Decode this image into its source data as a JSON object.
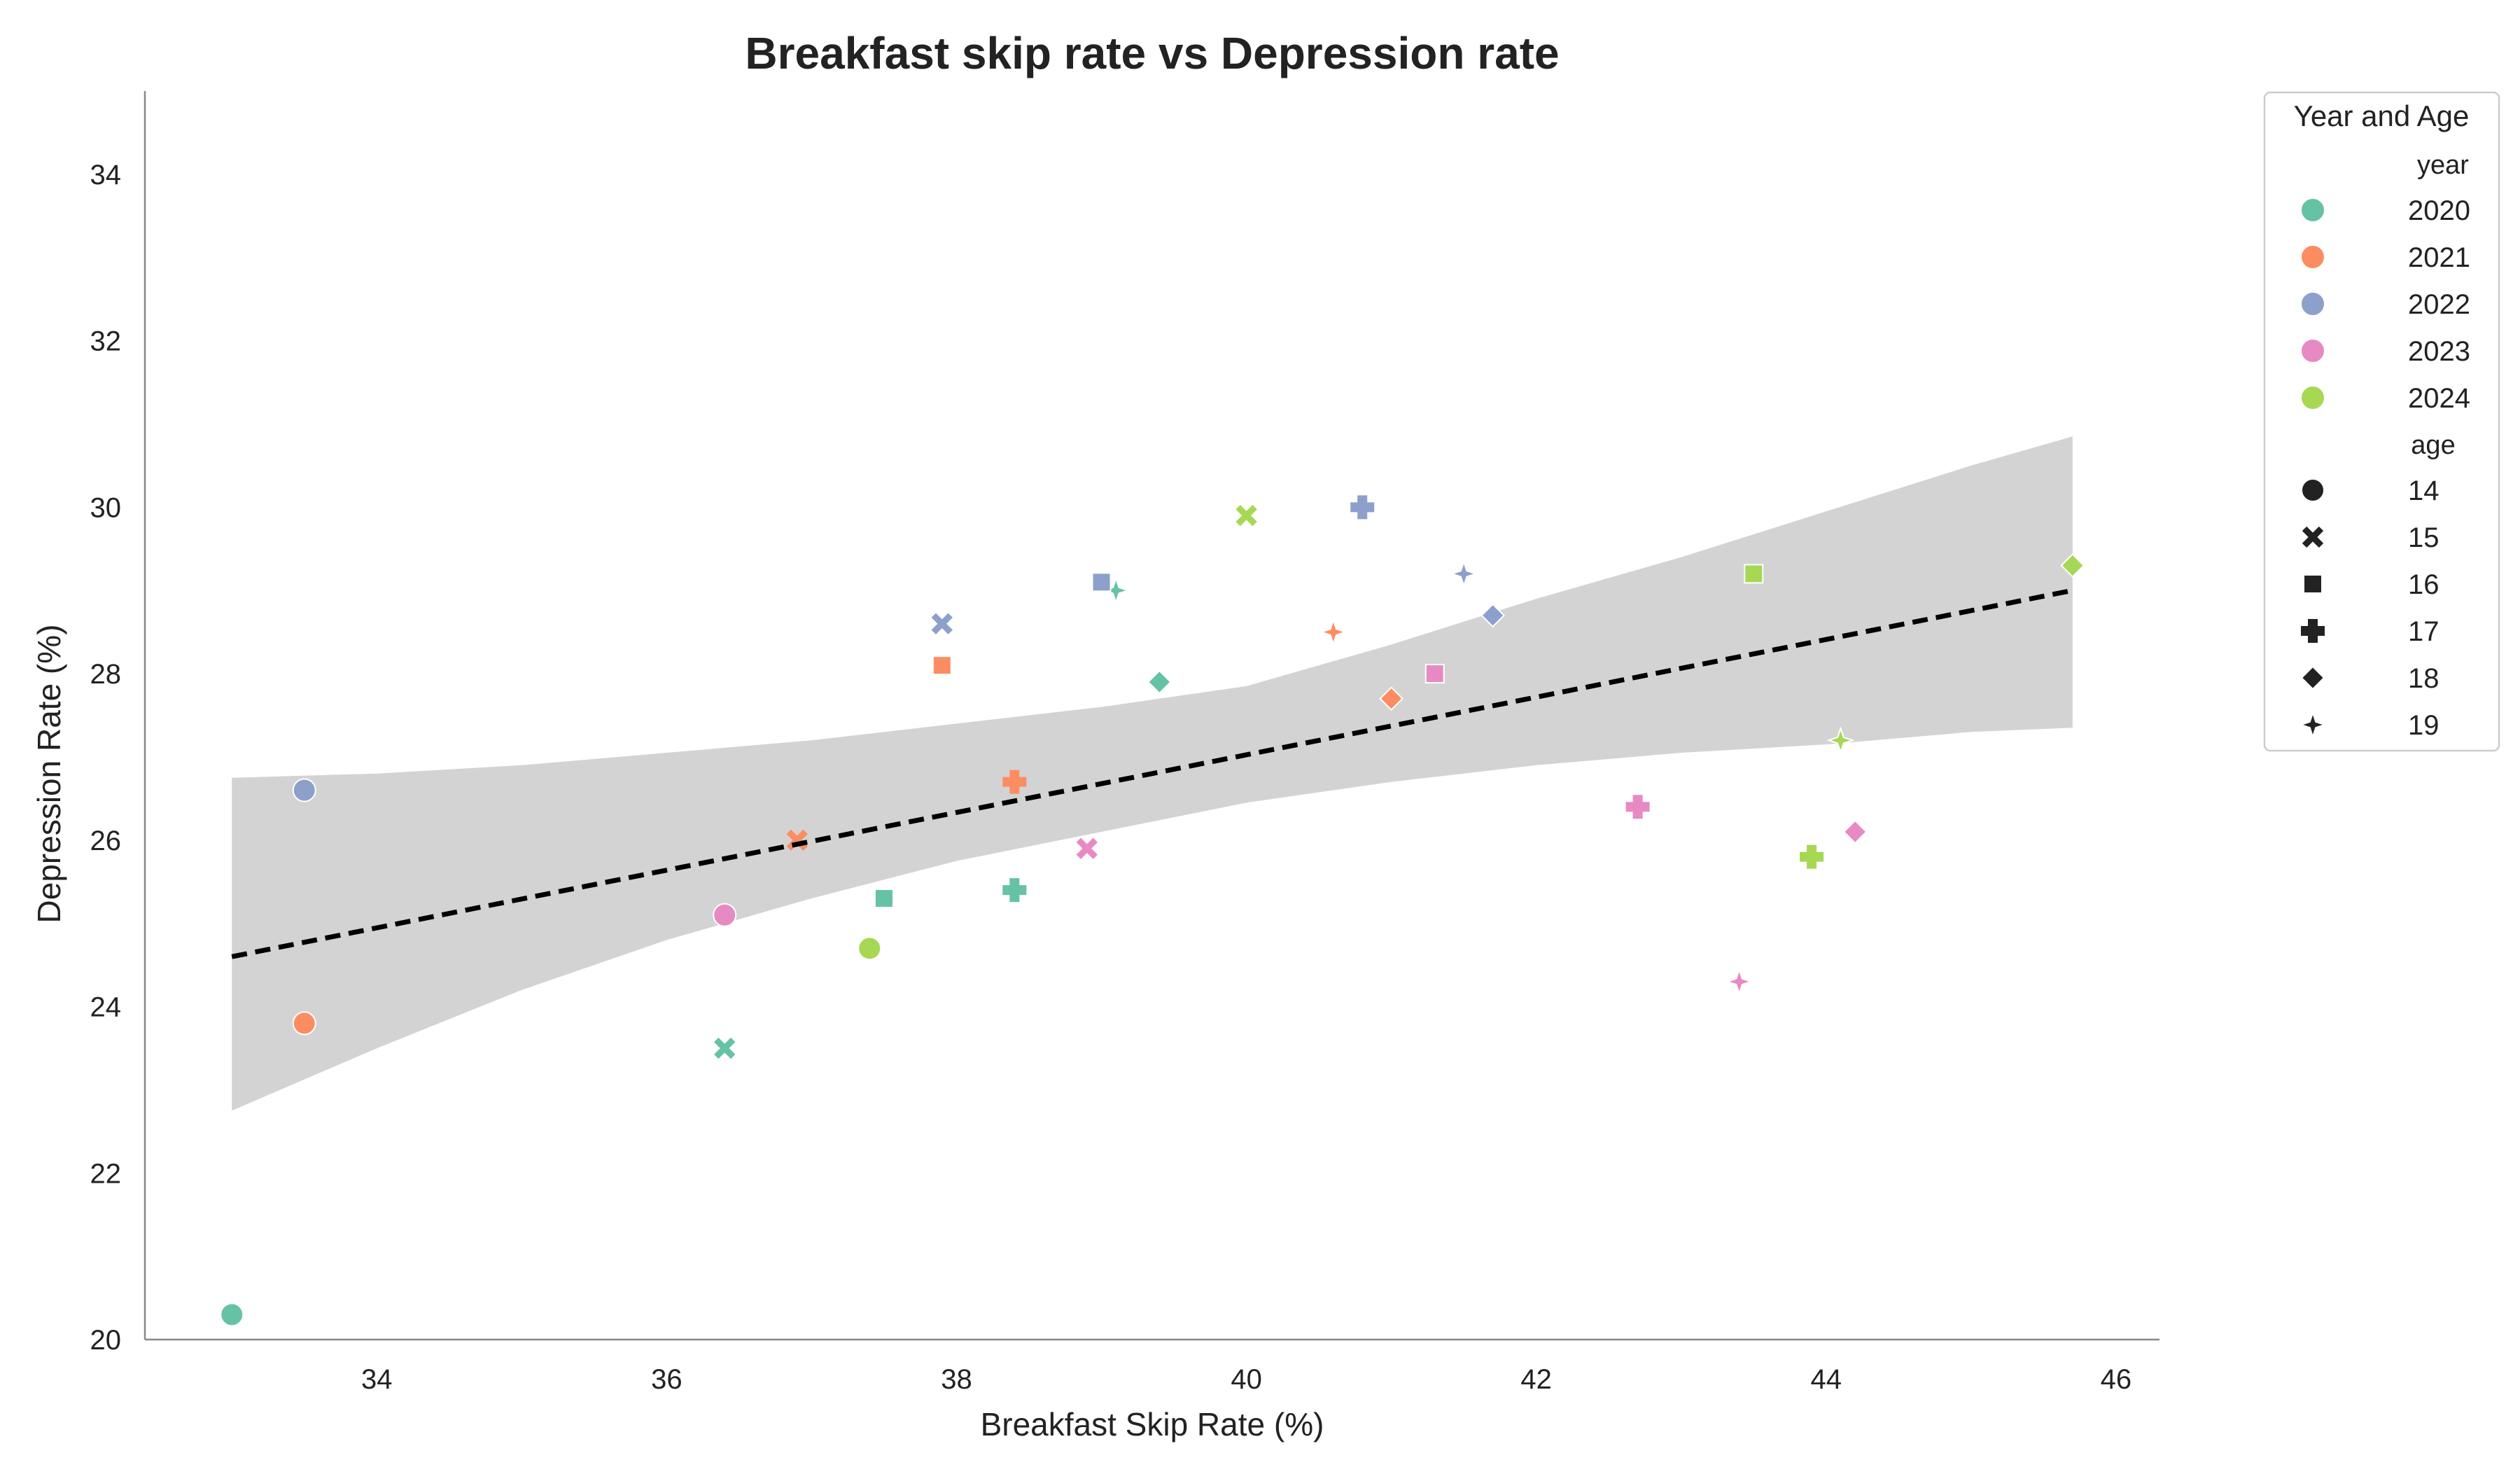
{
  "chart_data": {
    "type": "scatter",
    "title": "Breakfast skip rate vs Depression rate",
    "xlabel": "Breakfast Skip Rate (%)",
    "ylabel": "Depression Rate (%)",
    "xlim": [
      32.4,
      46.3
    ],
    "ylim": [
      20,
      35
    ],
    "xticks": [
      34,
      36,
      38,
      40,
      42,
      44,
      46
    ],
    "yticks": [
      20,
      22,
      24,
      26,
      28,
      30,
      32,
      34
    ],
    "grid": false,
    "legend": {
      "title": "Year and Age",
      "placement": "outside-top-right",
      "year_heading": "year",
      "age_heading": "age",
      "years": [
        {
          "label": "2020",
          "color": "#66c2a5"
        },
        {
          "label": "2021",
          "color": "#fc8d62"
        },
        {
          "label": "2022",
          "color": "#8da0cb"
        },
        {
          "label": "2023",
          "color": "#e78ac3"
        },
        {
          "label": "2024",
          "color": "#a6d854"
        }
      ],
      "ages": [
        {
          "label": "14",
          "marker": "circle"
        },
        {
          "label": "15",
          "marker": "x"
        },
        {
          "label": "16",
          "marker": "square"
        },
        {
          "label": "17",
          "marker": "plus"
        },
        {
          "label": "18",
          "marker": "diamond"
        },
        {
          "label": "19",
          "marker": "star"
        }
      ]
    },
    "points": [
      {
        "year": "2020",
        "age": "14",
        "x": 33.0,
        "y": 20.3
      },
      {
        "year": "2020",
        "age": "15",
        "x": 36.4,
        "y": 23.5
      },
      {
        "year": "2020",
        "age": "16",
        "x": 37.5,
        "y": 25.3
      },
      {
        "year": "2020",
        "age": "17",
        "x": 38.4,
        "y": 25.4
      },
      {
        "year": "2020",
        "age": "18",
        "x": 39.4,
        "y": 27.9
      },
      {
        "year": "2020",
        "age": "19",
        "x": 39.1,
        "y": 29.0
      },
      {
        "year": "2021",
        "age": "14",
        "x": 33.5,
        "y": 23.8
      },
      {
        "year": "2021",
        "age": "15",
        "x": 36.9,
        "y": 26.0
      },
      {
        "year": "2021",
        "age": "16",
        "x": 37.9,
        "y": 28.1
      },
      {
        "year": "2021",
        "age": "17",
        "x": 38.4,
        "y": 26.7
      },
      {
        "year": "2021",
        "age": "18",
        "x": 41.0,
        "y": 27.7
      },
      {
        "year": "2021",
        "age": "19",
        "x": 40.6,
        "y": 28.5
      },
      {
        "year": "2022",
        "age": "14",
        "x": 33.5,
        "y": 26.6
      },
      {
        "year": "2022",
        "age": "15",
        "x": 37.9,
        "y": 28.6
      },
      {
        "year": "2022",
        "age": "16",
        "x": 39.0,
        "y": 29.1
      },
      {
        "year": "2022",
        "age": "17",
        "x": 40.8,
        "y": 30.0
      },
      {
        "year": "2022",
        "age": "18",
        "x": 41.7,
        "y": 28.7
      },
      {
        "year": "2022",
        "age": "19",
        "x": 41.5,
        "y": 29.2
      },
      {
        "year": "2023",
        "age": "14",
        "x": 36.4,
        "y": 25.1
      },
      {
        "year": "2023",
        "age": "15",
        "x": 38.9,
        "y": 25.9
      },
      {
        "year": "2023",
        "age": "16",
        "x": 41.3,
        "y": 28.0
      },
      {
        "year": "2023",
        "age": "17",
        "x": 42.7,
        "y": 26.4
      },
      {
        "year": "2023",
        "age": "18",
        "x": 44.2,
        "y": 26.1
      },
      {
        "year": "2023",
        "age": "19",
        "x": 43.4,
        "y": 24.3
      },
      {
        "year": "2024",
        "age": "14",
        "x": 37.4,
        "y": 24.7
      },
      {
        "year": "2024",
        "age": "15",
        "x": 40.0,
        "y": 29.9
      },
      {
        "year": "2024",
        "age": "16",
        "x": 43.5,
        "y": 29.2
      },
      {
        "year": "2024",
        "age": "17",
        "x": 43.9,
        "y": 25.8
      },
      {
        "year": "2024",
        "age": "18",
        "x": 45.7,
        "y": 29.3
      },
      {
        "year": "2024",
        "age": "19",
        "x": 44.1,
        "y": 27.2
      }
    ],
    "regression": {
      "style": "dashed",
      "color": "#000000",
      "x": [
        33.0,
        45.7
      ],
      "y": [
        24.6,
        29.0
      ]
    },
    "confidence_band": {
      "color": "#d3d3d3",
      "x": [
        33.0,
        34.0,
        35.0,
        36.0,
        37.0,
        38.0,
        39.0,
        40.0,
        41.0,
        42.0,
        43.0,
        44.0,
        45.0,
        45.7
      ],
      "upper": [
        26.75,
        26.8,
        26.9,
        27.05,
        27.2,
        27.4,
        27.6,
        27.85,
        28.35,
        28.9,
        29.4,
        29.95,
        30.5,
        30.85
      ],
      "lower": [
        22.75,
        23.5,
        24.2,
        24.8,
        25.3,
        25.75,
        26.1,
        26.45,
        26.7,
        26.9,
        27.05,
        27.15,
        27.3,
        27.35
      ]
    }
  }
}
